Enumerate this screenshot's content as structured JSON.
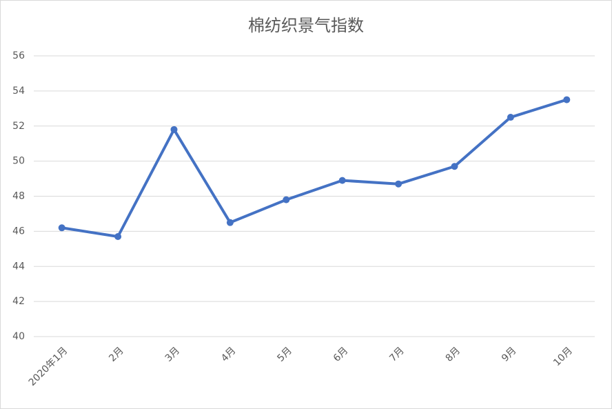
{
  "chart_data": {
    "type": "line",
    "title": "棉纺织景气指数",
    "categories": [
      "2020年1月",
      "2月",
      "3月",
      "4月",
      "5月",
      "6月",
      "7月",
      "8月",
      "9月",
      "10月"
    ],
    "series": [
      {
        "name": "棉纺织景气指数",
        "color": "#4472c4",
        "values": [
          46.2,
          45.7,
          51.8,
          46.5,
          47.8,
          48.9,
          48.7,
          49.7,
          52.5,
          53.5
        ]
      }
    ],
    "ylim": [
      40,
      56
    ],
    "yticks": [
      40,
      42,
      44,
      46,
      48,
      50,
      52,
      54,
      56
    ],
    "grid": true
  }
}
